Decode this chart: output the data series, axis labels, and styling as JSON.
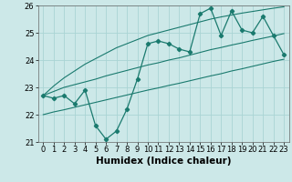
{
  "x": [
    0,
    1,
    2,
    3,
    4,
    5,
    6,
    7,
    8,
    9,
    10,
    11,
    12,
    13,
    14,
    15,
    16,
    17,
    18,
    19,
    20,
    21,
    22,
    23
  ],
  "y_main": [
    22.7,
    22.6,
    22.7,
    22.4,
    22.9,
    21.6,
    21.1,
    21.4,
    22.2,
    23.3,
    24.6,
    24.7,
    24.6,
    24.4,
    24.3,
    25.7,
    25.9,
    24.9,
    25.8,
    25.1,
    25.0,
    25.6,
    24.9,
    24.2
  ],
  "y_trend1": [
    22.7,
    23.05,
    23.35,
    23.6,
    23.85,
    24.05,
    24.25,
    24.45,
    24.6,
    24.75,
    24.9,
    25.0,
    25.1,
    25.2,
    25.3,
    25.4,
    25.5,
    25.58,
    25.65,
    25.72,
    25.78,
    25.84,
    25.9,
    25.95
  ],
  "y_trend2": [
    22.7,
    22.85,
    23.0,
    23.1,
    23.2,
    23.3,
    23.42,
    23.52,
    23.62,
    23.72,
    23.82,
    23.9,
    24.0,
    24.08,
    24.18,
    24.28,
    24.38,
    24.46,
    24.55,
    24.63,
    24.72,
    24.8,
    24.88,
    24.97
  ],
  "y_trend3": [
    22.0,
    22.1,
    22.18,
    22.27,
    22.36,
    22.45,
    22.54,
    22.63,
    22.72,
    22.81,
    22.9,
    22.98,
    23.07,
    23.15,
    23.24,
    23.33,
    23.42,
    23.5,
    23.6,
    23.68,
    23.77,
    23.86,
    23.95,
    24.03
  ],
  "line_color": "#1a7a6e",
  "bg_color": "#cce8e8",
  "grid_color": "#aad4d4",
  "xlabel": "Humidex (Indice chaleur)",
  "ylim": [
    21,
    26
  ],
  "xlim": [
    -0.5,
    23.5
  ],
  "yticks": [
    21,
    22,
    23,
    24,
    25,
    26
  ],
  "xticks": [
    0,
    1,
    2,
    3,
    4,
    5,
    6,
    7,
    8,
    9,
    10,
    11,
    12,
    13,
    14,
    15,
    16,
    17,
    18,
    19,
    20,
    21,
    22,
    23
  ],
  "xlabel_fontsize": 7.5,
  "tick_fontsize": 6.0
}
